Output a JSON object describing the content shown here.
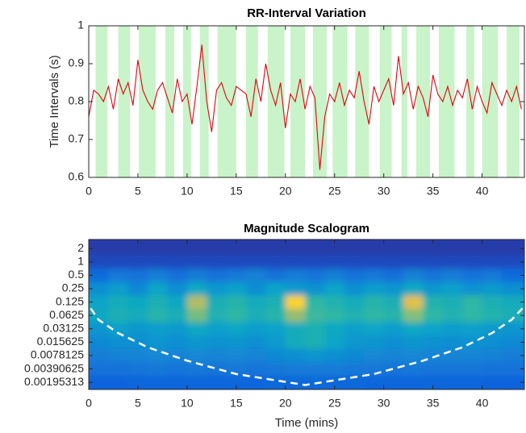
{
  "chart_data": [
    {
      "type": "line",
      "title": "RR-Interval Variation",
      "y_label": "Time Intervals (s)",
      "x": [
        0,
        0.5,
        1,
        1.5,
        2,
        2.5,
        3,
        3.5,
        4,
        4.5,
        5,
        5.5,
        6,
        6.5,
        7,
        7.5,
        8,
        8.5,
        9,
        9.5,
        10,
        10.5,
        11,
        11.5,
        12,
        12.5,
        13,
        13.5,
        14,
        14.5,
        15,
        15.5,
        16,
        16.5,
        17,
        17.5,
        18,
        18.5,
        19,
        19.5,
        20,
        20.5,
        21,
        21.5,
        22,
        22.5,
        23,
        23.5,
        24,
        24.5,
        25,
        25.5,
        26,
        26.5,
        27,
        27.5,
        28,
        28.5,
        29,
        29.5,
        30,
        30.5,
        31,
        31.5,
        32,
        32.5,
        33,
        33.5,
        34,
        34.5,
        35,
        35.5,
        36,
        36.5,
        37,
        37.5,
        38,
        38.5,
        39,
        39.5,
        40,
        40.5,
        41,
        41.5,
        42,
        42.5,
        43,
        43.5,
        44
      ],
      "series": [
        {
          "color": "#e8000b",
          "values": [
            0.76,
            0.83,
            0.82,
            0.8,
            0.84,
            0.78,
            0.86,
            0.82,
            0.85,
            0.79,
            0.91,
            0.83,
            0.8,
            0.78,
            0.83,
            0.85,
            0.81,
            0.77,
            0.86,
            0.8,
            0.82,
            0.74,
            0.84,
            0.95,
            0.8,
            0.72,
            0.83,
            0.85,
            0.81,
            0.79,
            0.84,
            0.83,
            0.82,
            0.76,
            0.86,
            0.8,
            0.9,
            0.83,
            0.79,
            0.85,
            0.73,
            0.82,
            0.8,
            0.86,
            0.78,
            0.84,
            0.81,
            0.62,
            0.76,
            0.82,
            0.8,
            0.85,
            0.79,
            0.83,
            0.81,
            0.88,
            0.8,
            0.74,
            0.84,
            0.8,
            0.83,
            0.86,
            0.79,
            0.92,
            0.82,
            0.85,
            0.78,
            0.84,
            0.81,
            0.76,
            0.87,
            0.82,
            0.8,
            0.84,
            0.79,
            0.83,
            0.81,
            0.86,
            0.78,
            0.84,
            0.8,
            0.77,
            0.85,
            0.82,
            0.79,
            0.83,
            0.8,
            0.84,
            0.78
          ]
        }
      ],
      "shaded_regions": [
        [
          0.7,
          1.9
        ],
        [
          3,
          4.2
        ],
        [
          5.1,
          6.8
        ],
        [
          7.8,
          8.7
        ],
        [
          9.6,
          10.4
        ],
        [
          11.3,
          12.2
        ],
        [
          13.1,
          15
        ],
        [
          16,
          17.2
        ],
        [
          18.2,
          19.9
        ],
        [
          20.5,
          22
        ],
        [
          22.8,
          24.2
        ],
        [
          24.8,
          26.3
        ],
        [
          27.1,
          28.5
        ],
        [
          29.6,
          30.8
        ],
        [
          31.8,
          32.4
        ],
        [
          33.3,
          34.7
        ],
        [
          35.6,
          37.2
        ],
        [
          38.4,
          39.2
        ],
        [
          40,
          41.6
        ],
        [
          42.5,
          43.8
        ]
      ],
      "shade_color": "#c9f3c9",
      "xlim": [
        0,
        44.3
      ],
      "xticks": [
        0,
        5,
        10,
        15,
        20,
        25,
        30,
        35,
        40
      ],
      "ylim": [
        0.6,
        1
      ],
      "yticks": [
        0.6,
        0.7,
        0.8,
        0.9,
        1
      ]
    },
    {
      "type": "heatmap",
      "title": "Magnitude Scalogram",
      "x_label": "Time (mins)",
      "log_y": true,
      "xbins": [
        0,
        2,
        4,
        6,
        8,
        10,
        12,
        14,
        16,
        18,
        20,
        22,
        24,
        26,
        28,
        30,
        32,
        34,
        36,
        38,
        40,
        42,
        44.3
      ],
      "colormap": [
        "#352a87",
        "#0f5cdd",
        "#1481d6",
        "#06a4ca",
        "#2eb7a4",
        "#87bf77",
        "#d1bb59",
        "#fec832",
        "#f9fb0e"
      ],
      "zlim": [
        0,
        1
      ],
      "z": [
        [
          0.05,
          0.05,
          0.05,
          0.05,
          0.05,
          0.05,
          0.05,
          0.05,
          0.05,
          0.05,
          0.05,
          0.05,
          0.05,
          0.05,
          0.05,
          0.05,
          0.05,
          0.05,
          0.05,
          0.05,
          0.05,
          0.05
        ],
        [
          0.08,
          0.08,
          0.08,
          0.08,
          0.08,
          0.08,
          0.08,
          0.08,
          0.08,
          0.08,
          0.08,
          0.08,
          0.08,
          0.08,
          0.08,
          0.08,
          0.08,
          0.08,
          0.08,
          0.08,
          0.08,
          0.08
        ],
        [
          0.18,
          0.22,
          0.2,
          0.24,
          0.19,
          0.23,
          0.2,
          0.22,
          0.25,
          0.2,
          0.23,
          0.21,
          0.24,
          0.2,
          0.22,
          0.19,
          0.25,
          0.21,
          0.23,
          0.2,
          0.22,
          0.18
        ],
        [
          0.3,
          0.35,
          0.28,
          0.38,
          0.3,
          0.4,
          0.33,
          0.36,
          0.3,
          0.37,
          0.34,
          0.31,
          0.38,
          0.3,
          0.35,
          0.32,
          0.4,
          0.33,
          0.36,
          0.31,
          0.34,
          0.3
        ],
        [
          0.38,
          0.42,
          0.4,
          0.45,
          0.4,
          0.7,
          0.44,
          0.48,
          0.42,
          0.45,
          0.9,
          0.5,
          0.46,
          0.43,
          0.48,
          0.45,
          0.8,
          0.47,
          0.44,
          0.5,
          0.45,
          0.42
        ],
        [
          0.4,
          0.45,
          0.42,
          0.48,
          0.44,
          0.6,
          0.46,
          0.5,
          0.44,
          0.48,
          0.65,
          0.52,
          0.5,
          0.46,
          0.5,
          0.48,
          0.62,
          0.5,
          0.46,
          0.5,
          0.47,
          0.44
        ],
        [
          0.32,
          0.36,
          0.33,
          0.35,
          0.34,
          0.4,
          0.36,
          0.38,
          0.35,
          0.37,
          0.42,
          0.45,
          0.4,
          0.36,
          0.38,
          0.35,
          0.4,
          0.37,
          0.35,
          0.36,
          0.34,
          0.32
        ],
        [
          0.28,
          0.3,
          0.3,
          0.32,
          0.3,
          0.33,
          0.31,
          0.32,
          0.3,
          0.34,
          0.42,
          0.45,
          0.38,
          0.33,
          0.32,
          0.3,
          0.32,
          0.31,
          0.3,
          0.31,
          0.3,
          0.28
        ],
        [
          0.24,
          0.25,
          0.26,
          0.27,
          0.26,
          0.27,
          0.26,
          0.27,
          0.26,
          0.28,
          0.3,
          0.32,
          0.3,
          0.28,
          0.27,
          0.26,
          0.27,
          0.26,
          0.26,
          0.26,
          0.25,
          0.24
        ],
        [
          0.2,
          0.2,
          0.21,
          0.22,
          0.21,
          0.22,
          0.21,
          0.22,
          0.21,
          0.22,
          0.23,
          0.23,
          0.23,
          0.22,
          0.22,
          0.21,
          0.22,
          0.21,
          0.21,
          0.21,
          0.2,
          0.2
        ],
        [
          0.15,
          0.15,
          0.16,
          0.16,
          0.16,
          0.16,
          0.16,
          0.16,
          0.16,
          0.17,
          0.17,
          0.17,
          0.17,
          0.17,
          0.16,
          0.16,
          0.16,
          0.16,
          0.16,
          0.16,
          0.15,
          0.15
        ]
      ],
      "coi": {
        "x": [
          0.2,
          1,
          3,
          6,
          10,
          15,
          22,
          29,
          34,
          38,
          41,
          43,
          44.1
        ],
        "y": [
          0.09,
          0.05,
          0.025,
          0.012,
          0.006,
          0.003,
          0.0017,
          0.003,
          0.006,
          0.012,
          0.025,
          0.05,
          0.09
        ]
      },
      "coi_color": "#ffffff",
      "xlim": [
        0,
        44.3
      ],
      "xticks": [
        0,
        5,
        10,
        15,
        20,
        25,
        30,
        35,
        40
      ],
      "ylim": [
        0.00135,
        3.2
      ],
      "yticks": [
        2,
        1,
        0.5,
        0.25,
        0.125,
        0.0625,
        0.03125,
        0.015625,
        0.0078125,
        0.00390625,
        0.00195313
      ]
    }
  ]
}
